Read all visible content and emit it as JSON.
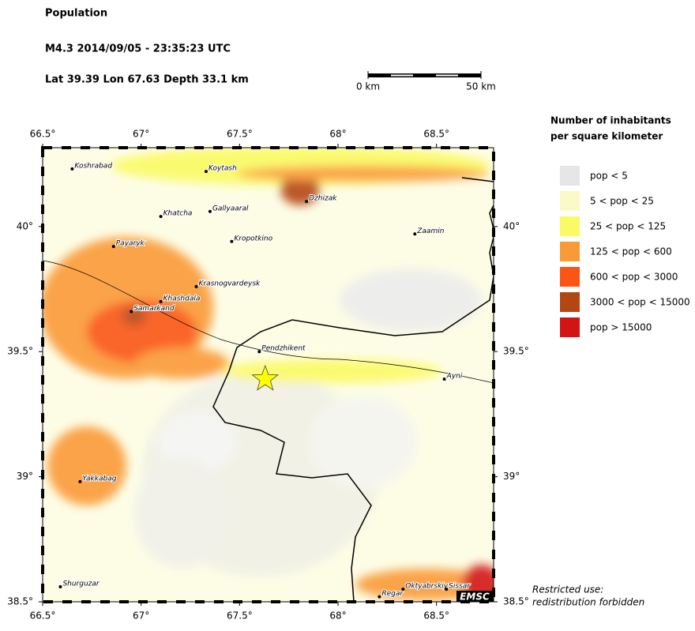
{
  "header": {
    "title": "Population",
    "event": "M4.3  2014/09/05 - 23:35:23 UTC",
    "location": "Lat 39.39    Lon  67.63     Depth  33.1 km"
  },
  "scale_bar": {
    "start_label": "0 km",
    "end_label": "50 km"
  },
  "map": {
    "lonlim": [
      66.5,
      68.79
    ],
    "latlim": [
      38.5,
      40.315
    ],
    "lon_ticks": [
      {
        "value": 66.5,
        "label": "66.5°"
      },
      {
        "value": 67,
        "label": "67°"
      },
      {
        "value": 67.5,
        "label": "67.5°"
      },
      {
        "value": 68,
        "label": "68°"
      },
      {
        "value": 68.5,
        "label": "68.5°"
      }
    ],
    "lat_ticks": [
      {
        "value": 38.5,
        "label": "38.5°"
      },
      {
        "value": 39,
        "label": "39°"
      },
      {
        "value": 39.5,
        "label": "39.5°"
      },
      {
        "value": 40,
        "label": "40°"
      }
    ],
    "epicenter": {
      "lon": 67.63,
      "lat": 39.39
    },
    "cities": [
      {
        "name": "Koshrabad",
        "lon": 66.65,
        "lat": 40.23
      },
      {
        "name": "Koytash",
        "lon": 67.33,
        "lat": 40.22
      },
      {
        "name": "Dzhizak",
        "lon": 67.84,
        "lat": 40.1
      },
      {
        "name": "Khatcha",
        "lon": 67.1,
        "lat": 40.04
      },
      {
        "name": "Gallyaaral",
        "lon": 67.35,
        "lat": 40.06
      },
      {
        "name": "Zaamin",
        "lon": 68.39,
        "lat": 39.97
      },
      {
        "name": "Kropotkino",
        "lon": 67.46,
        "lat": 39.94
      },
      {
        "name": "Payaryk",
        "lon": 66.86,
        "lat": 39.92
      },
      {
        "name": "Krasnogvardeysk",
        "lon": 67.28,
        "lat": 39.76
      },
      {
        "name": "Khashdala",
        "lon": 67.1,
        "lat": 39.7
      },
      {
        "name": "Samarkand",
        "lon": 66.95,
        "lat": 39.66
      },
      {
        "name": "Pendzhikent",
        "lon": 67.6,
        "lat": 39.5
      },
      {
        "name": "Ayni",
        "lon": 68.54,
        "lat": 39.39
      },
      {
        "name": "Yakkabag",
        "lon": 66.69,
        "lat": 38.98
      },
      {
        "name": "Shurguzar",
        "lon": 66.59,
        "lat": 38.56
      },
      {
        "name": "Regar",
        "lon": 68.21,
        "lat": 38.52
      },
      {
        "name": "Oktyabrskiy",
        "lon": 68.33,
        "lat": 38.55
      },
      {
        "name": "Sissar",
        "lon": 68.55,
        "lat": 38.55
      }
    ],
    "logo": "EMSC"
  },
  "legend": {
    "title_line1": "Number of inhabitants",
    "title_line2": "per square kilometer",
    "items": [
      {
        "label": "pop < 5",
        "color": "#e6e6e6"
      },
      {
        "label": "5 < pop < 25",
        "color": "#fafac8"
      },
      {
        "label": "25 < pop < 125",
        "color": "#fafa64"
      },
      {
        "label": "125 < pop < 600",
        "color": "#fa9a37"
      },
      {
        "label": "600 < pop < 3000",
        "color": "#fa5514"
      },
      {
        "label": "3000 < pop < 15000",
        "color": "#b44614"
      },
      {
        "label": "pop > 15000",
        "color": "#d21414"
      }
    ]
  },
  "notice": {
    "line1": "Restricted use:",
    "line2": "redistribution forbidden"
  }
}
